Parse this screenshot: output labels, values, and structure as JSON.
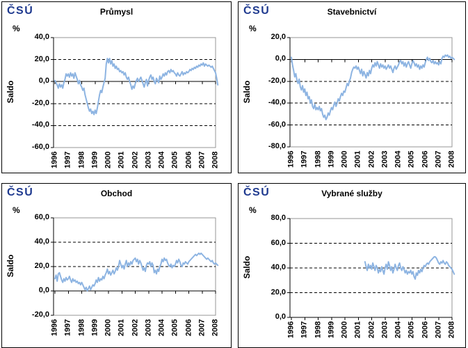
{
  "logo_text": "ČSÚ",
  "colors": {
    "line": "#8DB4E2",
    "logo": "#1F3A8F",
    "plot_border": "#969696",
    "axis": "#000000",
    "text": "#000000"
  },
  "chart_data": [
    {
      "type": "line",
      "title": "Průmysl",
      "unit": "%",
      "ylabel": "Saldo",
      "ylim": [
        -60,
        40
      ],
      "y_tick_step": 20,
      "grid": "horizontal-dashed",
      "legend": "none",
      "x_tick_labels": [
        "1996",
        "1997",
        "1998",
        "1999",
        "2000",
        "2001",
        "2002",
        "2003",
        "2004",
        "2005",
        "2006",
        "2007",
        "2008"
      ],
      "x_start": 1996.0,
      "x_interval_years": 0.0833,
      "series": [
        {
          "name": "Saldo",
          "values": [
            1,
            -1,
            -3,
            -6,
            -2,
            -5,
            -3,
            -6,
            -1,
            2,
            7,
            5,
            7,
            4,
            8,
            5,
            7,
            3,
            8,
            5,
            2,
            -2,
            1,
            -3,
            -5,
            -8,
            -6,
            -12,
            -16,
            -20,
            -24,
            -27,
            -25,
            -29,
            -27,
            -30,
            -26,
            -29,
            -24,
            -18,
            -12,
            -8,
            -10,
            -5,
            -1,
            3,
            16,
            21,
            17,
            21,
            16,
            19,
            14,
            16,
            12,
            14,
            11,
            12,
            9,
            10,
            8,
            9,
            6,
            8,
            4,
            2,
            4,
            0,
            -3,
            -7,
            -4,
            -6,
            -2,
            1,
            3,
            0,
            2,
            4,
            1,
            -2,
            -5,
            -1,
            2,
            -4,
            1,
            4,
            6,
            2,
            4,
            0,
            -2,
            3,
            1,
            -1,
            5,
            2,
            4,
            7,
            5,
            8,
            6,
            9,
            10,
            8,
            11,
            9,
            10,
            8,
            7,
            5,
            8,
            6,
            5,
            7,
            9,
            6,
            8,
            7,
            9,
            8,
            9,
            11,
            10,
            12,
            11,
            13,
            12,
            14,
            13,
            15,
            14,
            16,
            15,
            17,
            14,
            16,
            15,
            14,
            15,
            14,
            13,
            14,
            12,
            10,
            8,
            3,
            -3
          ]
        }
      ]
    },
    {
      "type": "line",
      "title": "Stavebnictví",
      "unit": "%",
      "ylabel": "Saldo",
      "ylim": [
        -80,
        20
      ],
      "y_tick_step": 20,
      "grid": "horizontal-dashed",
      "legend": "none",
      "x_tick_labels": [
        "1996",
        "1997",
        "1998",
        "1999",
        "2000",
        "2001",
        "2002",
        "2003",
        "2004",
        "2005",
        "2006",
        "2007",
        "2008"
      ],
      "x_start": 1996.0,
      "x_interval_years": 0.0833,
      "series": [
        {
          "name": "Saldo",
          "values": [
            2,
            -5,
            -10,
            -16,
            -13,
            -19,
            -22,
            -18,
            -25,
            -28,
            -24,
            -30,
            -27,
            -33,
            -30,
            -36,
            -34,
            -40,
            -37,
            -43,
            -45,
            -41,
            -46,
            -44,
            -46,
            -43,
            -47,
            -45,
            -50,
            -53,
            -51,
            -55,
            -53,
            -49,
            -51,
            -47,
            -44,
            -46,
            -42,
            -39,
            -43,
            -40,
            -36,
            -38,
            -34,
            -31,
            -33,
            -29,
            -30,
            -26,
            -22,
            -24,
            -20,
            -17,
            -12,
            -9,
            -7,
            -8,
            -6,
            -9,
            -7,
            -10,
            -13,
            -9,
            -15,
            -11,
            -14,
            -17,
            -12,
            -15,
            -10,
            -13,
            -8,
            -5,
            -7,
            -3,
            -6,
            -2,
            -5,
            -8,
            -4,
            -7,
            -5,
            -8,
            -6,
            -9,
            -7,
            -5,
            -8,
            -6,
            -9,
            -12,
            -8,
            -6,
            -9,
            -7,
            -5,
            -2,
            -1,
            -4,
            -2,
            -6,
            -3,
            -7,
            -4,
            -2,
            -5,
            -8,
            -4,
            -1,
            -3,
            -6,
            -4,
            -7,
            -5,
            -9,
            -6,
            -8,
            -5,
            -7,
            -3,
            0,
            2,
            -1,
            1,
            -2,
            -3,
            -1,
            -4,
            -2,
            -4,
            -3,
            -5,
            -2,
            -4,
            1,
            3,
            2,
            4,
            3,
            4,
            2,
            3,
            1,
            2,
            1,
            0
          ]
        }
      ]
    },
    {
      "type": "line",
      "title": "Obchod",
      "unit": "%",
      "ylabel": "Saldo",
      "ylim": [
        -20,
        60
      ],
      "y_tick_step": 20,
      "grid": "horizontal-dashed",
      "legend": "none",
      "x_tick_labels": [
        "1996",
        "1997",
        "1998",
        "1999",
        "2000",
        "2001",
        "2002",
        "2003",
        "2004",
        "2005",
        "2006",
        "2007",
        "2008"
      ],
      "x_start": 1996.0,
      "x_interval_years": 0.0833,
      "series": [
        {
          "name": "Saldo",
          "values": [
            10,
            13,
            8,
            14,
            15,
            12,
            9,
            7,
            10,
            8,
            11,
            9,
            10,
            12,
            9,
            7,
            10,
            8,
            9,
            7,
            8,
            6,
            7,
            5,
            7,
            5,
            3,
            1,
            3,
            0,
            2,
            4,
            1,
            3,
            5,
            4,
            6,
            9,
            7,
            11,
            8,
            10,
            9,
            12,
            10,
            13,
            15,
            18,
            14,
            16,
            13,
            15,
            17,
            14,
            16,
            19,
            17,
            20,
            25,
            22,
            19,
            21,
            18,
            22,
            25,
            20,
            23,
            21,
            24,
            22,
            25,
            26,
            27,
            24,
            26,
            22,
            25,
            23,
            20,
            17,
            19,
            16,
            21,
            23,
            22,
            24,
            20,
            23,
            21,
            15,
            17,
            14,
            18,
            16,
            20,
            22,
            26,
            24,
            27,
            25,
            26,
            23,
            21,
            20,
            22,
            19,
            21,
            20,
            22,
            25,
            23,
            26,
            24,
            21,
            20,
            23,
            22,
            24,
            23,
            22,
            24,
            25,
            26,
            27,
            28,
            29,
            30,
            29,
            30,
            31,
            30,
            31,
            30,
            29,
            28,
            27,
            26,
            27,
            26,
            25,
            24,
            25,
            23,
            22,
            23,
            22,
            21
          ]
        }
      ]
    },
    {
      "type": "line",
      "title": "Vybrané služby",
      "unit": "%",
      "ylabel": "Saldo",
      "ylim": [
        0,
        80
      ],
      "y_tick_step": 20,
      "grid": "horizontal-dashed",
      "legend": "none",
      "x_tick_labels": [
        "1996",
        "1997",
        "1998",
        "1999",
        "2000",
        "2001",
        "2002",
        "2003",
        "2004",
        "2005",
        "2006",
        "2007",
        "2008"
      ],
      "x_start": 2001.5,
      "x_interval_years": 0.0833,
      "series": [
        {
          "name": "Saldo",
          "values": [
            45,
            41,
            38,
            43,
            40,
            42,
            39,
            44,
            41,
            38,
            42,
            40,
            36,
            39,
            37,
            41,
            38,
            35,
            40,
            43,
            39,
            45,
            42,
            38,
            41,
            36,
            39,
            43,
            40,
            38,
            42,
            44,
            40,
            38,
            41,
            39,
            36,
            38,
            35,
            37,
            36,
            38,
            35,
            37,
            33,
            31,
            36,
            34,
            38,
            36,
            39,
            37,
            40,
            42,
            41,
            43,
            44,
            43,
            45,
            46,
            47,
            48,
            49,
            49,
            48,
            46,
            44,
            43,
            45,
            44,
            46,
            44,
            43,
            45,
            44,
            42,
            41,
            40,
            39,
            37,
            35
          ]
        }
      ]
    }
  ]
}
